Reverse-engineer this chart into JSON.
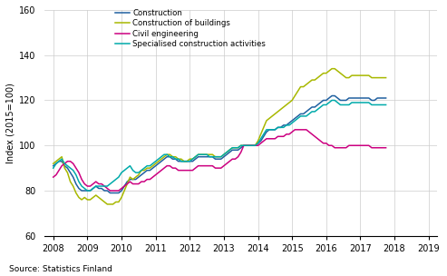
{
  "title": "",
  "ylabel": "Index (2015=100)",
  "xlabel": "",
  "source": "Source: Statistics Finland",
  "xlim": [
    2007.75,
    2019.25
  ],
  "ylim": [
    60,
    160
  ],
  "yticks": [
    60,
    80,
    100,
    120,
    140,
    160
  ],
  "xticks": [
    2008,
    2009,
    2010,
    2011,
    2012,
    2013,
    2014,
    2015,
    2016,
    2017,
    2018,
    2019
  ],
  "legend_labels": [
    "Construction",
    "Construction of buildings",
    "Civil engineering",
    "Specialised construction activities"
  ],
  "colors": [
    "#2060a0",
    "#a8b800",
    "#cc0080",
    "#00aaaa"
  ],
  "construction": [
    91,
    92,
    93,
    93,
    91,
    90,
    88,
    86,
    83,
    81,
    80,
    80,
    80,
    80,
    81,
    82,
    81,
    81,
    80,
    80,
    79,
    79,
    79,
    79,
    80,
    82,
    84,
    85,
    85,
    85,
    86,
    87,
    88,
    89,
    89,
    90,
    91,
    92,
    93,
    94,
    95,
    95,
    94,
    94,
    93,
    93,
    93,
    93,
    93,
    93,
    94,
    95,
    95,
    95,
    95,
    95,
    95,
    94,
    94,
    94,
    95,
    96,
    97,
    98,
    98,
    98,
    99,
    100,
    100,
    100,
    100,
    100,
    101,
    102,
    104,
    106,
    107,
    107,
    107,
    108,
    108,
    109,
    109,
    110,
    111,
    112,
    113,
    114,
    114,
    115,
    116,
    117,
    117,
    118,
    119,
    120,
    120,
    121,
    122,
    122,
    121,
    120,
    120,
    120,
    121,
    121,
    121,
    121,
    121,
    121,
    121,
    121,
    120,
    120,
    121,
    121,
    121,
    121
  ],
  "construction_buildings": [
    92,
    93,
    94,
    95,
    90,
    88,
    84,
    82,
    79,
    77,
    76,
    77,
    76,
    76,
    77,
    78,
    77,
    76,
    75,
    74,
    74,
    74,
    75,
    75,
    77,
    80,
    83,
    86,
    85,
    86,
    87,
    89,
    89,
    90,
    90,
    91,
    92,
    93,
    94,
    95,
    96,
    96,
    95,
    95,
    94,
    94,
    93,
    93,
    94,
    94,
    95,
    96,
    96,
    96,
    96,
    96,
    96,
    95,
    95,
    95,
    96,
    97,
    98,
    99,
    99,
    99,
    100,
    100,
    100,
    100,
    100,
    100,
    102,
    105,
    108,
    111,
    112,
    113,
    114,
    115,
    116,
    117,
    118,
    119,
    120,
    122,
    124,
    126,
    126,
    127,
    128,
    129,
    129,
    130,
    131,
    132,
    132,
    133,
    134,
    134,
    133,
    132,
    131,
    130,
    130,
    131,
    131,
    131,
    131,
    131,
    131,
    131,
    130,
    130,
    130,
    130,
    130,
    130
  ],
  "civil_engineering": [
    86,
    87,
    89,
    91,
    92,
    93,
    93,
    92,
    90,
    88,
    85,
    83,
    82,
    82,
    83,
    84,
    83,
    83,
    82,
    81,
    80,
    80,
    80,
    80,
    81,
    82,
    83,
    84,
    83,
    83,
    83,
    84,
    84,
    85,
    85,
    86,
    87,
    88,
    89,
    90,
    91,
    91,
    90,
    90,
    89,
    89,
    89,
    89,
    89,
    89,
    90,
    91,
    91,
    91,
    91,
    91,
    91,
    90,
    90,
    90,
    91,
    92,
    93,
    94,
    94,
    95,
    97,
    100,
    100,
    100,
    100,
    100,
    100,
    101,
    102,
    103,
    103,
    103,
    103,
    104,
    104,
    104,
    105,
    105,
    106,
    107,
    107,
    107,
    107,
    107,
    106,
    105,
    104,
    103,
    102,
    101,
    101,
    100,
    100,
    99,
    99,
    99,
    99,
    99,
    100,
    100,
    100,
    100,
    100,
    100,
    100,
    100,
    99,
    99,
    99,
    99,
    99,
    99
  ],
  "specialised": [
    90,
    92,
    93,
    94,
    92,
    91,
    90,
    89,
    87,
    84,
    82,
    81,
    80,
    80,
    81,
    82,
    82,
    82,
    82,
    82,
    83,
    84,
    85,
    86,
    88,
    89,
    90,
    91,
    89,
    88,
    88,
    89,
    90,
    91,
    91,
    92,
    93,
    94,
    95,
    96,
    96,
    95,
    95,
    94,
    94,
    93,
    93,
    93,
    93,
    94,
    95,
    96,
    96,
    96,
    96,
    95,
    95,
    95,
    95,
    95,
    96,
    97,
    98,
    99,
    99,
    99,
    100,
    100,
    100,
    100,
    100,
    100,
    101,
    103,
    105,
    107,
    107,
    107,
    107,
    108,
    108,
    108,
    109,
    109,
    110,
    111,
    112,
    113,
    113,
    113,
    114,
    115,
    115,
    116,
    117,
    118,
    118,
    119,
    120,
    120,
    119,
    118,
    118,
    118,
    118,
    119,
    119,
    119,
    119,
    119,
    119,
    119,
    118,
    118,
    118,
    118,
    118,
    118
  ],
  "background_color": "#ffffff",
  "grid_color": "#cccccc",
  "linewidth": 1.1
}
